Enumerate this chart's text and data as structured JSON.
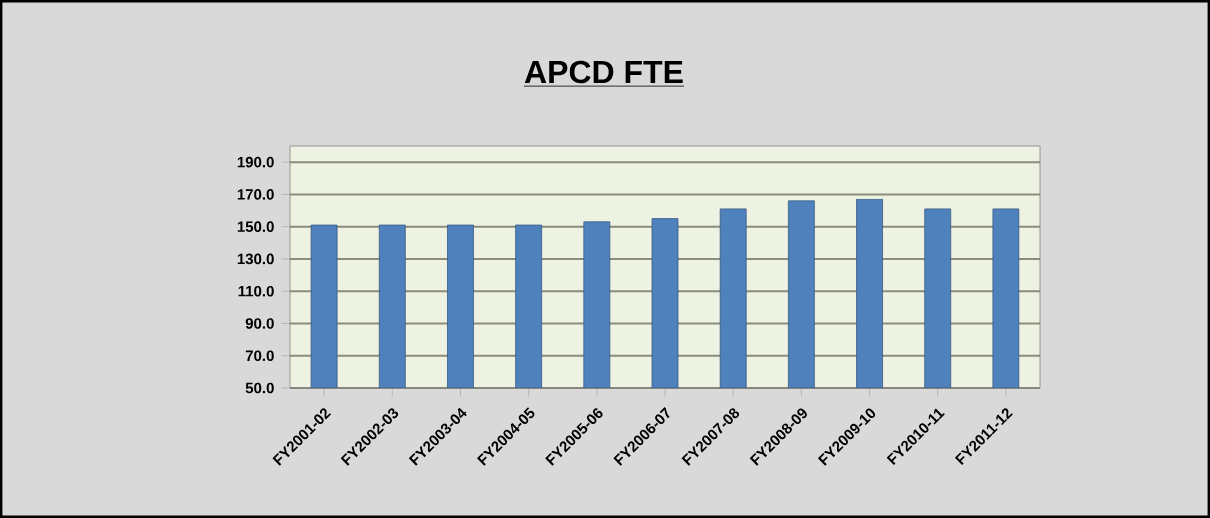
{
  "chart_data": {
    "type": "bar",
    "title": "APCD FTE",
    "categories": [
      "FY2001-02",
      "FY2002-03",
      "FY2003-04",
      "FY2004-05",
      "FY2005-06",
      "FY2006-07",
      "FY2007-08",
      "FY2008-09",
      "FY2009-10",
      "FY2010-11",
      "FY2011-12"
    ],
    "values": [
      151,
      151,
      151,
      151,
      153,
      155,
      161,
      166,
      167,
      161,
      161
    ],
    "color": "#4f81bd",
    "ylim": [
      50,
      200
    ],
    "yticks": [
      {
        "value": 50,
        "label": "50.0"
      },
      {
        "value": 70,
        "label": "70.0"
      },
      {
        "value": 90,
        "label": "90.0"
      },
      {
        "value": 110,
        "label": "110.0"
      },
      {
        "value": 130,
        "label": "130.0"
      },
      {
        "value": 150,
        "label": "150.0"
      },
      {
        "value": 170,
        "label": "170.0"
      },
      {
        "value": 190,
        "label": "190.0"
      }
    ],
    "grid": "y"
  }
}
